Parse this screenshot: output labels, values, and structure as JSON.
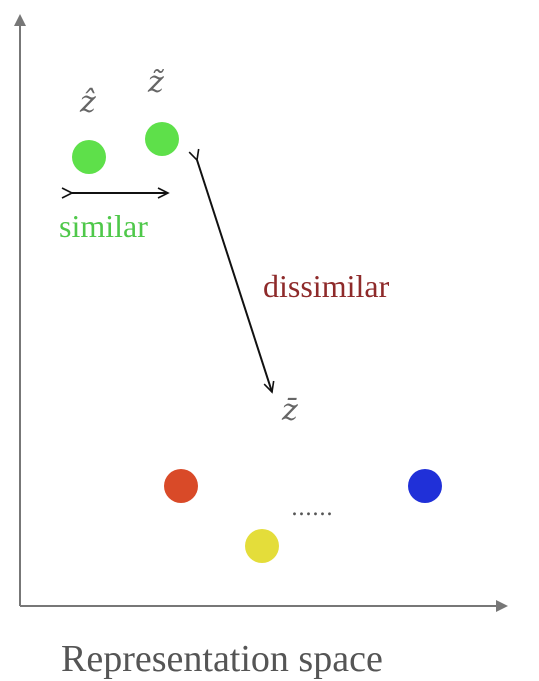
{
  "labels": {
    "z_hat": "ẑ",
    "z_tilde": "z̃",
    "z_bar": "z̄",
    "similar": "similar",
    "dissimilar": "dissimilar",
    "ellipsis": "......",
    "caption": "Representation space"
  },
  "colors": {
    "axis": "#777777",
    "arrow": "#111111",
    "similar_text": "#4fc84a",
    "dissimilar_text": "#8e2a2a",
    "z_label": "#666666",
    "ellipsis": "#555555",
    "caption": "#555555",
    "green_point": "#5ee04a",
    "red_point": "#d94a28",
    "yellow_point": "#e4dd3a",
    "blue_point": "#2030d8"
  },
  "points": [
    {
      "name": "z-hat-point",
      "color_key": "green_point"
    },
    {
      "name": "z-tilde-point",
      "color_key": "green_point"
    },
    {
      "name": "red-point",
      "color_key": "red_point"
    },
    {
      "name": "yellow-point",
      "color_key": "yellow_point"
    },
    {
      "name": "blue-point",
      "color_key": "blue_point"
    }
  ]
}
